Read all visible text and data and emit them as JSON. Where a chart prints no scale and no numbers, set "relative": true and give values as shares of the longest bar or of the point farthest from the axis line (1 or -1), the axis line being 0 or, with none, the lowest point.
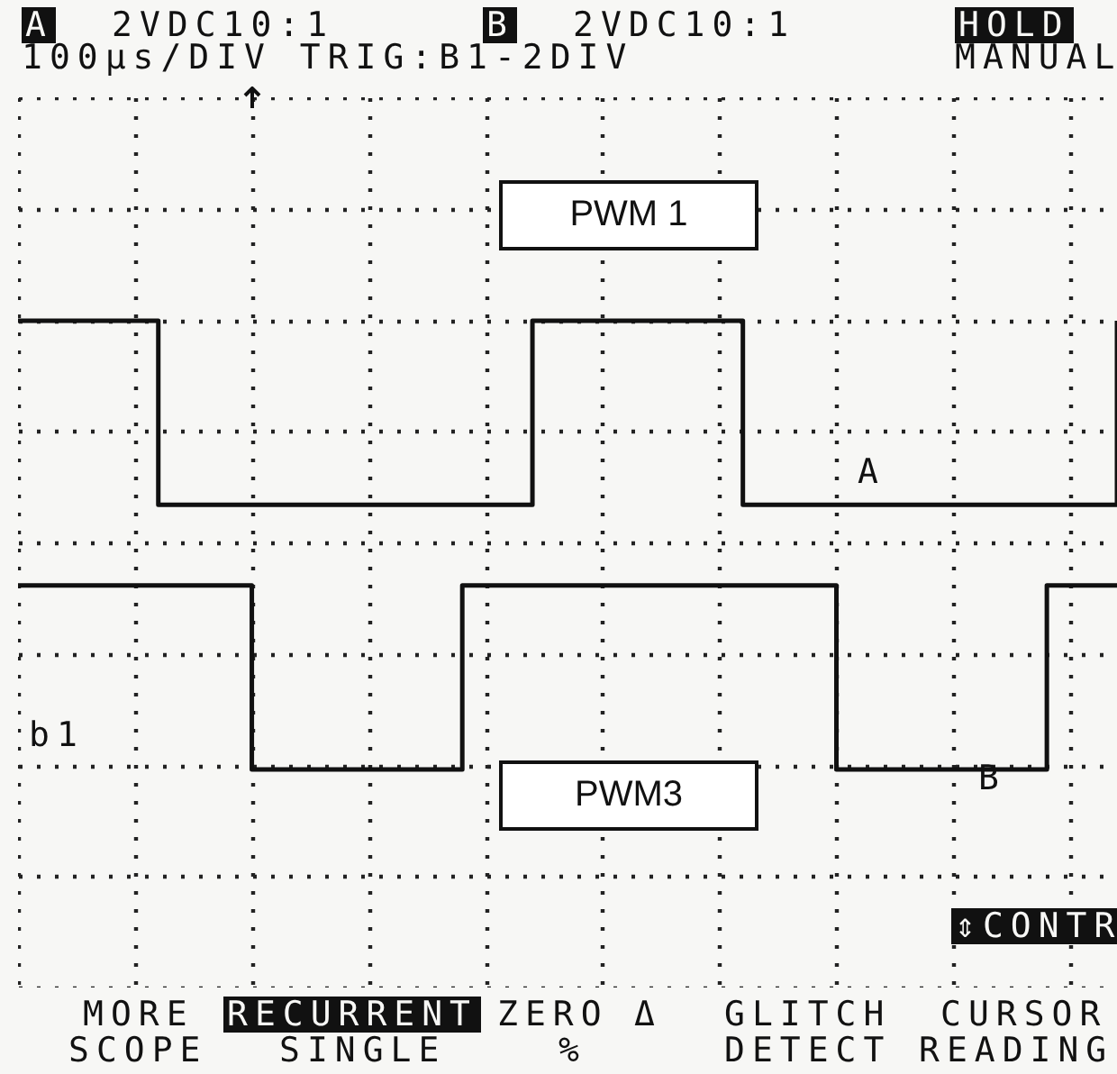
{
  "chart_data": {
    "type": "step",
    "relative": true,
    "grid": true,
    "line_style": "solid",
    "marker": "none",
    "categories": [
      null,
      null,
      null,
      null,
      null,
      null,
      null,
      null,
      null,
      null,
      null,
      null,
      null,
      null,
      null,
      null,
      null,
      null,
      null,
      null,
      null,
      null,
      null,
      null,
      null,
      null,
      null,
      null,
      null,
      null,
      null,
      null,
      null,
      null,
      null,
      null,
      null,
      null,
      null,
      null,
      null,
      null,
      null,
      null,
      null,
      null,
      null,
      null
    ],
    "series": [
      {
        "name": "PWM 1",
        "color": "#111111",
        "values": [
          1,
          1,
          1,
          1,
          1,
          1,
          0.59,
          0.59,
          0.59,
          0.59,
          0.59,
          0.59,
          0.59,
          0.59,
          0.59,
          0.59,
          0.59,
          0.59,
          0.59,
          0.59,
          0.59,
          0.59,
          1,
          1,
          1,
          1,
          1,
          1,
          1,
          1,
          1,
          0.59,
          0.59,
          0.59,
          0.59,
          0.59,
          0.59,
          0.59,
          0.59,
          0.59,
          0.59,
          0.59,
          0.59,
          0.59,
          0.59,
          0.59,
          0.59,
          1
        ]
      },
      {
        "name": "PWM3",
        "color": "#111111",
        "values": [
          0.41,
          0.41,
          0.41,
          0.41,
          0.41,
          0.41,
          0.41,
          0.41,
          0.41,
          0.41,
          0,
          0,
          0,
          0,
          0,
          0,
          0,
          0,
          0,
          0.41,
          0.41,
          0.41,
          0.41,
          0.41,
          0.41,
          0.41,
          0.41,
          0.41,
          0.41,
          0.41,
          0.41,
          0.41,
          0.41,
          0.41,
          0.41,
          0,
          0,
          0,
          0,
          0,
          0,
          0,
          0,
          0,
          0.41,
          0.41,
          0.41,
          0.41
        ]
      }
    ],
    "annotations": [
      "A",
      "2VDC10:1",
      "B",
      "2VDC10:1",
      "100µs/DIV TRIG:B1-2DIV",
      "HOLD",
      "MANUAL",
      "b1",
      "A",
      "B",
      "⇕CONTR",
      "MORE",
      "SCOPE",
      "RECURRENT",
      "SINGLE",
      "ZERO",
      "Δ",
      "%",
      "GLITCH",
      "DETECT",
      "CURSOR",
      "READING"
    ]
  }
}
